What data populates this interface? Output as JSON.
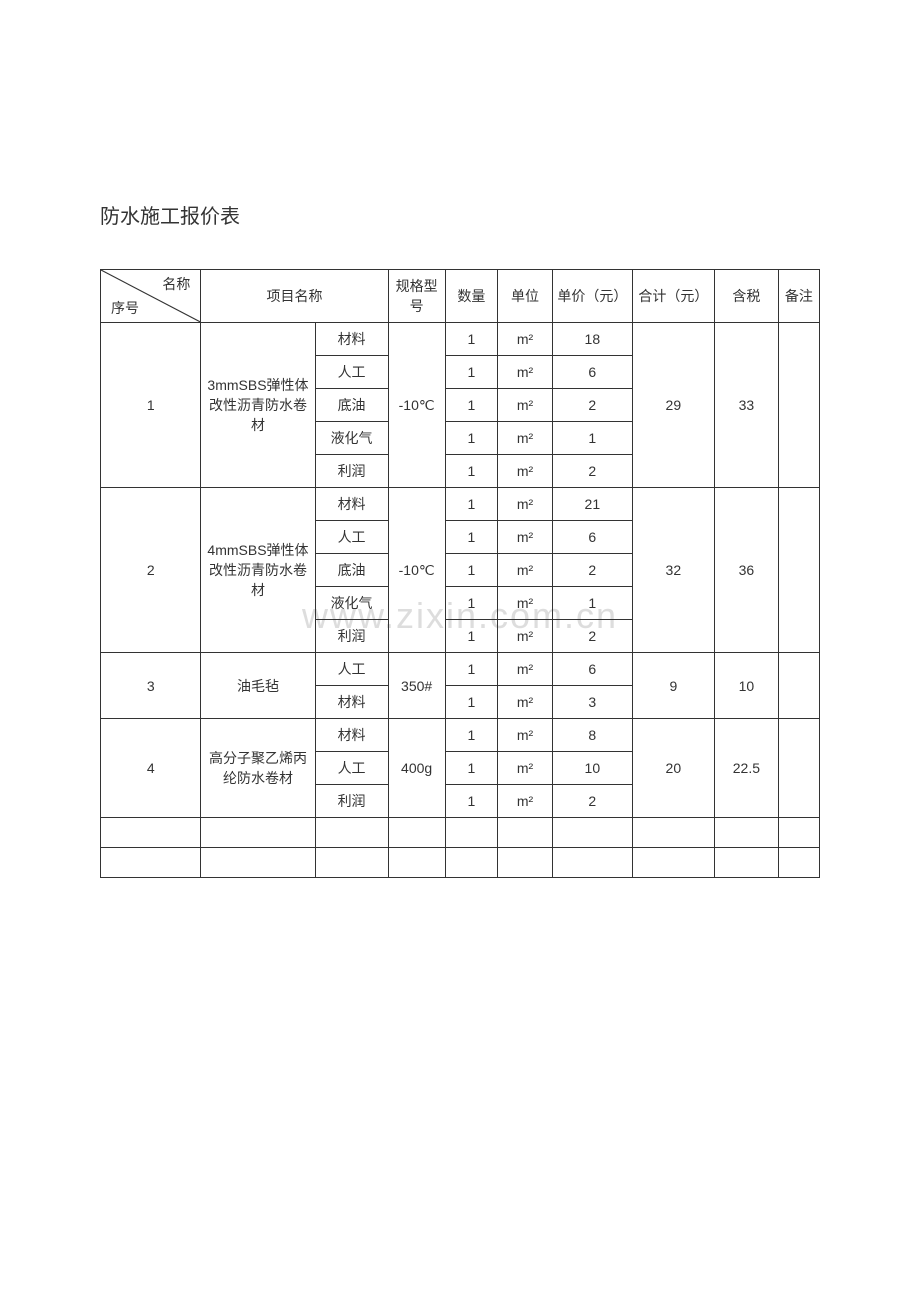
{
  "title": "防水施工报价表",
  "watermark": "www.zixin.com.cn",
  "columns": {
    "diag_top": "名称",
    "diag_bottom": "序号",
    "proj_name": "项目名称",
    "spec": "规格型号",
    "qty": "数量",
    "unit": "单位",
    "unit_price": "单价（元）",
    "sum": "合计（元）",
    "tax": "含税",
    "remark": "备注"
  },
  "rows": [
    {
      "seq": "1",
      "proj_name": "3mmSBS弹性体改性沥青防水卷材",
      "spec": "-10℃",
      "sum": "29",
      "tax": "33",
      "remark": "",
      "items": [
        {
          "sub": "材料",
          "qty": "1",
          "unit": "m²",
          "price": "18"
        },
        {
          "sub": "人工",
          "qty": "1",
          "unit": "m²",
          "price": "6"
        },
        {
          "sub": "底油",
          "qty": "1",
          "unit": "m²",
          "price": "2"
        },
        {
          "sub": "液化气",
          "qty": "1",
          "unit": "m²",
          "price": "1"
        },
        {
          "sub": "利润",
          "qty": "1",
          "unit": "m²",
          "price": "2"
        }
      ]
    },
    {
      "seq": "2",
      "proj_name": "4mmSBS弹性体改性沥青防水卷材",
      "spec": "-10℃",
      "sum": "32",
      "tax": "36",
      "remark": "",
      "items": [
        {
          "sub": "材料",
          "qty": "1",
          "unit": "m²",
          "price": "21"
        },
        {
          "sub": "人工",
          "qty": "1",
          "unit": "m²",
          "price": "6"
        },
        {
          "sub": "底油",
          "qty": "1",
          "unit": "m²",
          "price": "2"
        },
        {
          "sub": "液化气",
          "qty": "1",
          "unit": "m²",
          "price": "1"
        },
        {
          "sub": "利润",
          "qty": "1",
          "unit": "m²",
          "price": "2"
        }
      ]
    },
    {
      "seq": "3",
      "proj_name": "油毛毡",
      "spec": "350#",
      "sum": "9",
      "tax": "10",
      "remark": "",
      "items": [
        {
          "sub": "人工",
          "qty": "1",
          "unit": "m²",
          "price": "6"
        },
        {
          "sub": "材料",
          "qty": "1",
          "unit": "m²",
          "price": "3"
        }
      ]
    },
    {
      "seq": "4",
      "proj_name": "高分子聚乙烯丙纶防水卷材",
      "spec": "400g",
      "sum": "20",
      "tax": "22.5",
      "remark": "",
      "items": [
        {
          "sub": "材料",
          "qty": "1",
          "unit": "m²",
          "price": "8"
        },
        {
          "sub": "人工",
          "qty": "1",
          "unit": "m²",
          "price": "10"
        },
        {
          "sub": "利润",
          "qty": "1",
          "unit": "m²",
          "price": "2"
        }
      ]
    }
  ],
  "empty_rows": 2,
  "styling": {
    "border_color": "#333333",
    "text_color": "#333333",
    "background_color": "#ffffff",
    "watermark_color": "#dddddd",
    "font_size_title": 20,
    "font_size_cell": 14
  }
}
